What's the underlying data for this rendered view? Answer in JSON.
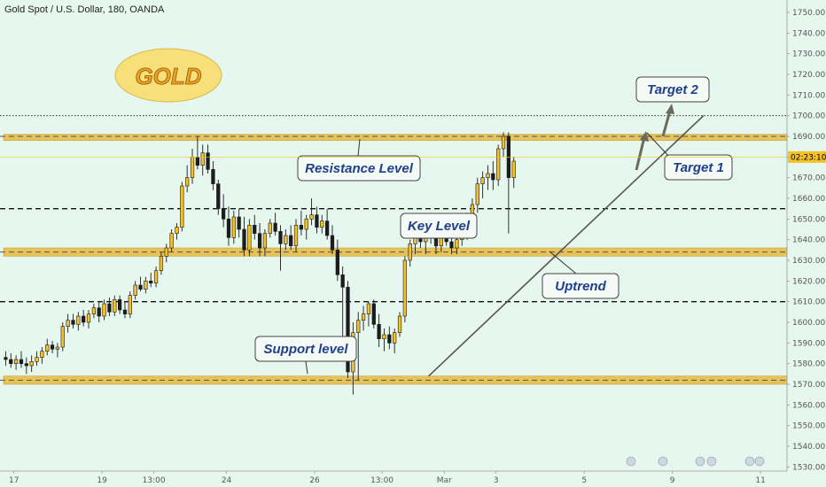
{
  "chart_data": {
    "type": "candlestick",
    "title": "Gold Spot / U.S. Dollar, 180, OANDA",
    "y_axis": {
      "range": [
        1528,
        1756
      ],
      "ticks": [
        1530,
        1540,
        1550,
        1560,
        1570,
        1580,
        1590,
        1600,
        1610,
        1620,
        1630,
        1640,
        1650,
        1660,
        1670,
        1680,
        1690,
        1700,
        1710,
        1720,
        1730,
        1740,
        1750
      ]
    },
    "x_axis": {
      "ticks": [
        {
          "label": "17",
          "at": 2
        },
        {
          "label": "19",
          "at": 19
        },
        {
          "label": "13:00",
          "at": 29
        },
        {
          "label": "24",
          "at": 43
        },
        {
          "label": "26",
          "at": 60
        },
        {
          "label": "13:00",
          "at": 73
        },
        {
          "label": "Mar",
          "at": 85
        },
        {
          "label": "3",
          "at": 95
        },
        {
          "label": "5",
          "at": 112
        },
        {
          "label": "9",
          "at": 129
        },
        {
          "label": "11",
          "at": 146
        }
      ]
    },
    "current_price_label": "02:23:10",
    "current_price": 1680,
    "candles": [
      [
        1583,
        1586,
        1579,
        1582
      ],
      [
        1582,
        1585,
        1578,
        1580
      ],
      [
        1580,
        1584,
        1577,
        1582
      ],
      [
        1582,
        1586,
        1578,
        1580
      ],
      [
        1580,
        1583,
        1575,
        1579
      ],
      [
        1579,
        1584,
        1576,
        1581
      ],
      [
        1581,
        1586,
        1579,
        1583
      ],
      [
        1583,
        1588,
        1580,
        1586
      ],
      [
        1586,
        1592,
        1584,
        1589
      ],
      [
        1589,
        1591,
        1585,
        1587
      ],
      [
        1587,
        1590,
        1583,
        1588
      ],
      [
        1588,
        1600,
        1586,
        1598
      ],
      [
        1598,
        1604,
        1595,
        1601
      ],
      [
        1601,
        1604,
        1597,
        1599
      ],
      [
        1599,
        1605,
        1596,
        1603
      ],
      [
        1603,
        1606,
        1598,
        1600
      ],
      [
        1600,
        1606,
        1597,
        1604
      ],
      [
        1604,
        1609,
        1602,
        1607
      ],
      [
        1607,
        1610,
        1600,
        1603
      ],
      [
        1603,
        1611,
        1601,
        1609
      ],
      [
        1609,
        1612,
        1603,
        1605
      ],
      [
        1605,
        1613,
        1603,
        1611
      ],
      [
        1611,
        1613,
        1604,
        1606
      ],
      [
        1606,
        1610,
        1602,
        1604
      ],
      [
        1604,
        1615,
        1602,
        1613
      ],
      [
        1613,
        1620,
        1611,
        1618
      ],
      [
        1618,
        1622,
        1615,
        1616
      ],
      [
        1616,
        1622,
        1614,
        1620
      ],
      [
        1620,
        1624,
        1617,
        1619
      ],
      [
        1619,
        1627,
        1617,
        1625
      ],
      [
        1625,
        1634,
        1623,
        1632
      ],
      [
        1632,
        1638,
        1629,
        1636
      ],
      [
        1636,
        1645,
        1634,
        1643
      ],
      [
        1643,
        1648,
        1640,
        1646
      ],
      [
        1646,
        1668,
        1644,
        1666
      ],
      [
        1666,
        1676,
        1663,
        1670
      ],
      [
        1670,
        1684,
        1667,
        1680
      ],
      [
        1680,
        1690,
        1674,
        1676
      ],
      [
        1676,
        1686,
        1671,
        1682
      ],
      [
        1682,
        1686,
        1672,
        1674
      ],
      [
        1674,
        1678,
        1664,
        1667
      ],
      [
        1667,
        1669,
        1652,
        1655
      ],
      [
        1655,
        1662,
        1646,
        1650
      ],
      [
        1650,
        1656,
        1637,
        1641
      ],
      [
        1641,
        1654,
        1638,
        1651
      ],
      [
        1651,
        1655,
        1641,
        1645
      ],
      [
        1645,
        1651,
        1632,
        1635
      ],
      [
        1635,
        1650,
        1632,
        1647
      ],
      [
        1647,
        1652,
        1640,
        1643
      ],
      [
        1643,
        1648,
        1632,
        1636
      ],
      [
        1636,
        1645,
        1632,
        1643
      ],
      [
        1643,
        1650,
        1641,
        1648
      ],
      [
        1648,
        1653,
        1642,
        1644
      ],
      [
        1644,
        1647,
        1625,
        1638
      ],
      [
        1638,
        1645,
        1635,
        1642
      ],
      [
        1642,
        1647,
        1635,
        1637
      ],
      [
        1637,
        1650,
        1634,
        1647
      ],
      [
        1647,
        1654,
        1642,
        1645
      ],
      [
        1645,
        1652,
        1640,
        1650
      ],
      [
        1650,
        1660,
        1647,
        1652
      ],
      [
        1652,
        1656,
        1643,
        1646
      ],
      [
        1646,
        1652,
        1643,
        1649
      ],
      [
        1649,
        1655,
        1640,
        1642
      ],
      [
        1642,
        1647,
        1633,
        1635
      ],
      [
        1635,
        1640,
        1620,
        1623
      ],
      [
        1623,
        1627,
        1584,
        1617
      ],
      [
        1617,
        1620,
        1573,
        1576
      ],
      [
        1576,
        1600,
        1565,
        1595
      ],
      [
        1595,
        1605,
        1572,
        1601
      ],
      [
        1601,
        1608,
        1596,
        1604
      ],
      [
        1604,
        1610,
        1598,
        1609
      ],
      [
        1609,
        1611,
        1597,
        1599
      ],
      [
        1599,
        1604,
        1588,
        1592
      ],
      [
        1592,
        1597,
        1586,
        1594
      ],
      [
        1594,
        1598,
        1587,
        1590
      ],
      [
        1590,
        1597,
        1585,
        1595
      ],
      [
        1595,
        1605,
        1593,
        1603
      ],
      [
        1603,
        1632,
        1600,
        1630
      ],
      [
        1630,
        1640,
        1627,
        1638
      ],
      [
        1638,
        1648,
        1633,
        1642
      ],
      [
        1642,
        1646,
        1636,
        1639
      ],
      [
        1639,
        1645,
        1633,
        1643
      ],
      [
        1643,
        1648,
        1638,
        1641
      ],
      [
        1641,
        1647,
        1633,
        1637
      ],
      [
        1637,
        1646,
        1634,
        1643
      ],
      [
        1643,
        1647,
        1637,
        1639
      ],
      [
        1639,
        1643,
        1633,
        1636
      ],
      [
        1636,
        1642,
        1633,
        1640
      ],
      [
        1640,
        1645,
        1637,
        1643
      ],
      [
        1643,
        1653,
        1640,
        1650
      ],
      [
        1650,
        1660,
        1647,
        1657
      ],
      [
        1657,
        1670,
        1653,
        1667
      ],
      [
        1667,
        1673,
        1660,
        1670
      ],
      [
        1670,
        1676,
        1664,
        1672
      ],
      [
        1672,
        1678,
        1664,
        1669
      ],
      [
        1669,
        1686,
        1666,
        1684
      ],
      [
        1684,
        1692,
        1680,
        1690
      ],
      [
        1690,
        1692,
        1643,
        1670
      ],
      [
        1670,
        1680,
        1665,
        1678
      ]
    ],
    "horizontal_levels": [
      {
        "price": 1700,
        "style": "dotted",
        "color": "#333333"
      },
      {
        "price": 1690,
        "style": "zone",
        "color": "#e6c25a",
        "band": [
          1688,
          1691
        ]
      },
      {
        "price": 1655,
        "style": "dashed",
        "color": "#111111"
      },
      {
        "price": 1634,
        "style": "zone",
        "color": "#e6c25a",
        "band": [
          1632,
          1636
        ]
      },
      {
        "price": 1610,
        "style": "dashed",
        "color": "#111111"
      },
      {
        "price": 1572,
        "style": "zone",
        "color": "#e6c25a",
        "band": [
          1570,
          1574
        ]
      }
    ],
    "trendline": {
      "from": {
        "at": 82,
        "price": 1574
      },
      "to": {
        "at": 135,
        "price": 1700
      }
    },
    "annotations": [
      {
        "text": "GOLD",
        "type": "badge"
      },
      {
        "text": "Resistance Level",
        "type": "callout",
        "target": "resistance"
      },
      {
        "text": "Key Level",
        "type": "callout",
        "target": "key"
      },
      {
        "text": "Support level",
        "type": "callout",
        "target": "support"
      },
      {
        "text": "Uptrend",
        "type": "callout",
        "target": "trendline"
      },
      {
        "text": "Target 1",
        "type": "callout",
        "target": "target1"
      },
      {
        "text": "Target 2",
        "type": "callout",
        "target": "target2"
      }
    ],
    "colors": {
      "background": "#e6f7ef",
      "bull": "#f5c12a",
      "bear": "#1c1c1c",
      "zone": "#e6c25a",
      "callout_text": "#1f3f8c"
    }
  }
}
